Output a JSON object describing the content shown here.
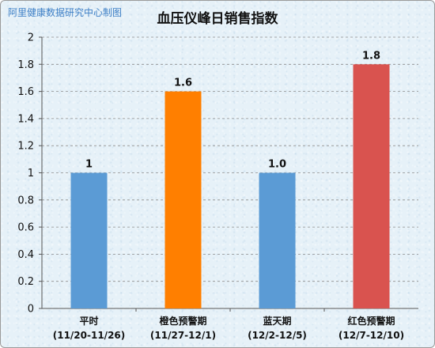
{
  "watermark": "阿里健康数据研究中心制图",
  "colors": {
    "blue": "#5b9bd5",
    "orange": "#ff7f00",
    "red": "#d9534f"
  },
  "chart_data": {
    "type": "bar",
    "title": "血压仪峰日销售指数",
    "xlabel": "",
    "ylabel": "",
    "ylim": [
      0,
      2
    ],
    "yticks": [
      "0",
      "0.2",
      "0.4",
      "0.6",
      "0.8",
      "1",
      "1.2",
      "1.4",
      "1.6",
      "1.8",
      "2"
    ],
    "grid": true,
    "categories": [
      {
        "line1": "平时",
        "line2": "(11/20-11/26)"
      },
      {
        "line1": "橙色预警期",
        "line2": "(11/27-12/1)"
      },
      {
        "line1": "蓝天期",
        "line2": "(12/2-12/5)"
      },
      {
        "line1": "红色预警期",
        "line2": "(12/7-12/10)"
      }
    ],
    "values": [
      1,
      1.6,
      1.0,
      1.8
    ],
    "data_labels": [
      "1",
      "1.6",
      "1.0",
      "1.8"
    ],
    "bar_colors": [
      "#5b9bd5",
      "#ff7f00",
      "#5b9bd5",
      "#d9534f"
    ]
  }
}
